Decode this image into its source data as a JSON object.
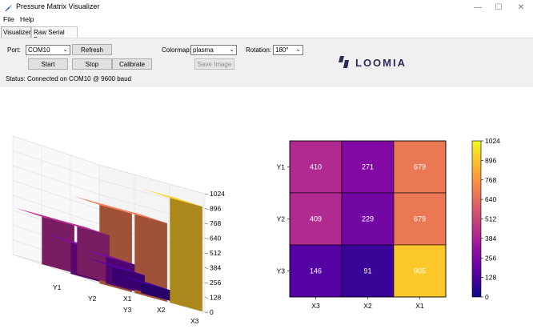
{
  "window": {
    "title": "Pressure Matrix Visualizer",
    "controls": [
      "—",
      "☐",
      "✕"
    ]
  },
  "menu": [
    "File",
    "Help"
  ],
  "tabs": [
    {
      "label": "Visualizer",
      "active": true
    },
    {
      "label": "Raw Serial Data",
      "active": false
    }
  ],
  "controls": {
    "port_label": "Port:",
    "port_value": "COM10",
    "refresh_label": "Refresh",
    "start_label": "Start",
    "stop_label": "Stop",
    "calibrate_label": "Calibrate",
    "colormap_label": "Colormap:",
    "colormap_value": "plasma",
    "save_label": "Save Image",
    "rotation_label": "Rotation:",
    "rotation_value": "180°",
    "status_label": "Status:",
    "status_text": "Connected on COM10 @ 9600 baud"
  },
  "logo": {
    "text": "LOOMIA",
    "color": "#2a2d5a"
  },
  "chart_data": [
    {
      "type": "bar3d",
      "rows": [
        "Y1",
        "Y2",
        "Y3"
      ],
      "cols": [
        "X1",
        "X2",
        "X3"
      ],
      "zticks": [
        0,
        128,
        256,
        384,
        512,
        640,
        768,
        896,
        1024
      ],
      "zlim": [
        0,
        1024
      ]
    },
    {
      "type": "heatmap",
      "rows": [
        "Y1",
        "Y2",
        "Y3"
      ],
      "cols": [
        "X3",
        "X2",
        "X1"
      ],
      "values": [
        [
          410,
          271,
          679
        ],
        [
          409,
          229,
          679
        ],
        [
          146,
          91,
          905
        ]
      ],
      "colorbar_ticks": [
        0,
        128,
        256,
        384,
        512,
        640,
        768,
        896,
        1024
      ],
      "vmin": 0,
      "vmax": 1024,
      "colormap": "plasma"
    }
  ]
}
